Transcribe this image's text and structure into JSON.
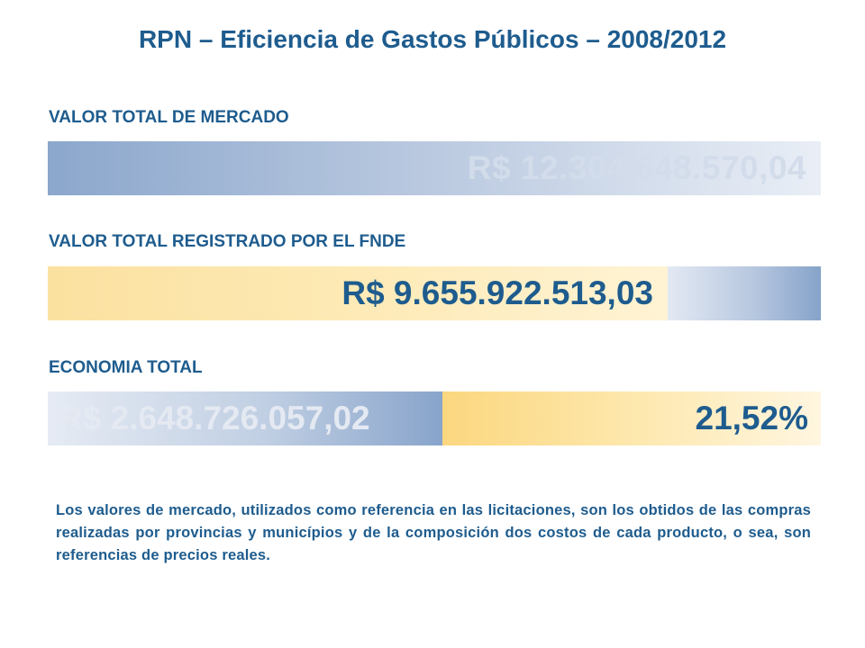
{
  "title": "RPN – Eficiencia de Gastos Públicos – 2008/2012",
  "market": {
    "label": "VALOR TOTAL DE MERCADO",
    "value": "R$ 12.304.648.570,04"
  },
  "registered": {
    "label": "VALOR TOTAL REGISTRADO POR EL FNDE",
    "value": "R$ 9.655.922.513,03",
    "share_of_market": 0.7848
  },
  "savings": {
    "label": "ECONOMIA TOTAL",
    "value": "R$ 2.648.726.057,02",
    "percent": "21,52%"
  },
  "note": "Los valores de mercado, utilizados como referencia en las licitaciones, son los obtidos de las compras realizadas por provincias y municípios y de la composición dos costos de cada producto, o sea, son referencias de precios reales.",
  "colors": {
    "text_blue": "#1e5c8e",
    "bar_blue": "#8ba7cc",
    "bar_yellow": "#fbd77f"
  }
}
